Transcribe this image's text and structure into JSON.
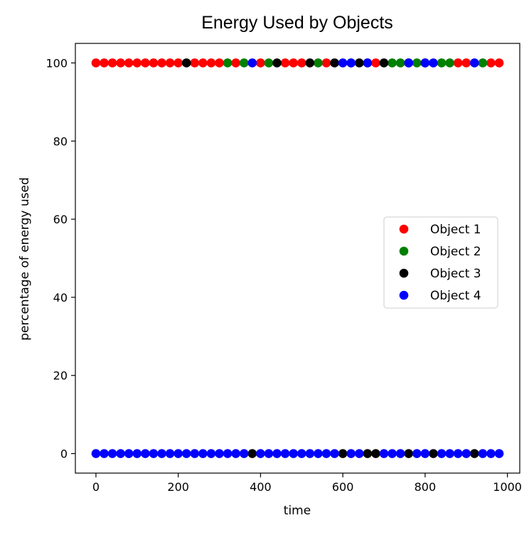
{
  "chart_data": {
    "type": "scatter",
    "title": "Energy Used by Objects",
    "xlabel": "time",
    "ylabel": "percentage of energy used",
    "xlim": [
      -50,
      1030
    ],
    "ylim": [
      -5,
      105
    ],
    "xticks": [
      0,
      200,
      400,
      600,
      800,
      1000
    ],
    "yticks": [
      0,
      20,
      40,
      60,
      80,
      100
    ],
    "grid": false,
    "legend_position": "center-right",
    "series": [
      {
        "name": "Object 1",
        "color": "#ff0000"
      },
      {
        "name": "Object 2",
        "color": "#008000"
      },
      {
        "name": "Object 3",
        "color": "#000000"
      },
      {
        "name": "Object 4",
        "color": "#0000ff"
      }
    ],
    "points": {
      "y100": {
        "Object 1": [
          0,
          20,
          40,
          60,
          80,
          100,
          120,
          140,
          160,
          180,
          200,
          240,
          260,
          280,
          300,
          340,
          400,
          460,
          480,
          500,
          560,
          660,
          680,
          880,
          900,
          960,
          980
        ],
        "Object 2": [
          320,
          360,
          420,
          540,
          620,
          720,
          740,
          780,
          840,
          860,
          940
        ],
        "Object 3": [
          220,
          440,
          520,
          580,
          640,
          700,
          760,
          800
        ],
        "Object 4": [
          380,
          600,
          620,
          660,
          760,
          800,
          820,
          920
        ]
      },
      "y0": {
        "Object 3": [
          380,
          600,
          660,
          680,
          760,
          820,
          920
        ],
        "Object 4": [
          0,
          20,
          40,
          60,
          80,
          100,
          120,
          140,
          160,
          180,
          200,
          220,
          240,
          260,
          280,
          300,
          320,
          340,
          360,
          400,
          420,
          440,
          460,
          480,
          500,
          520,
          540,
          560,
          580,
          620,
          640,
          700,
          720,
          740,
          780,
          800,
          840,
          860,
          880,
          900,
          940,
          960,
          980
        ]
      }
    }
  }
}
